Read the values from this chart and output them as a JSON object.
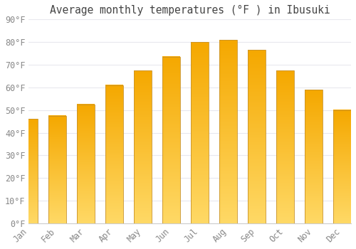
{
  "title": "Average monthly temperatures (°F ) in Ibusuki",
  "months": [
    "Jan",
    "Feb",
    "Mar",
    "Apr",
    "May",
    "Jun",
    "Jul",
    "Aug",
    "Sep",
    "Oct",
    "Nov",
    "Dec"
  ],
  "values": [
    46,
    47.5,
    52.5,
    61,
    67.5,
    73.5,
    80,
    81,
    76.5,
    67.5,
    59,
    50
  ],
  "bar_color_top": "#F5A800",
  "bar_color_bottom": "#FFD966",
  "bar_edge_color": "#C8922A",
  "ylim": [
    0,
    90
  ],
  "yticks": [
    0,
    10,
    20,
    30,
    40,
    50,
    60,
    70,
    80,
    90
  ],
  "background_color": "#ffffff",
  "grid_color": "#e8e8ee",
  "title_fontsize": 10.5,
  "tick_fontsize": 8.5,
  "tick_color": "#888888",
  "figsize": [
    5.0,
    3.5
  ],
  "dpi": 100
}
